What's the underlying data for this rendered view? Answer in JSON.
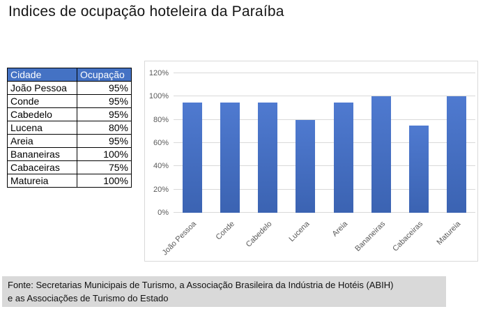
{
  "title": "Indices de ocupação hoteleira da Paraíba",
  "table": {
    "headers": [
      "Cidade",
      "Ocupação"
    ],
    "rows": [
      [
        "João Pessoa",
        "95%"
      ],
      [
        "Conde",
        "95%"
      ],
      [
        "Cabedelo",
        "95%"
      ],
      [
        "Lucena",
        "80%"
      ],
      [
        "Areia",
        "95%"
      ],
      [
        "Bananeiras",
        "100%"
      ],
      [
        "Cabaceiras",
        "75%"
      ],
      [
        "Matureia",
        "100%"
      ]
    ]
  },
  "chart_data": {
    "type": "bar",
    "categories": [
      "João Pessoa",
      "Conde",
      "Cabedelo",
      "Lucena",
      "Areia",
      "Bananeiras",
      "Cabaceiras",
      "Matureia"
    ],
    "values": [
      95,
      95,
      95,
      80,
      95,
      100,
      75,
      100
    ],
    "value_suffix": "%",
    "title": "",
    "xlabel": "",
    "ylabel": "",
    "ylim": [
      0,
      120
    ],
    "ytick_step": 20,
    "ytick_labels": [
      "0%",
      "20%",
      "40%",
      "60%",
      "80%",
      "100%",
      "120%"
    ],
    "grid": true,
    "legend": false
  },
  "footer": {
    "line1": "Fonte: Secretarias Municipais de Turismo, a Associação Brasileira da Indústria de Hotéis (ABIH)",
    "line2": "e as Associações de Turismo do Estado"
  },
  "colors": {
    "table_header_bg": "#4472c4",
    "table_header_text": "#ffffff",
    "table_border": "#000000",
    "bar_top": "#4f7ad0",
    "bar_bottom": "#3b63b2",
    "gridline": "#d9d9d9",
    "axis_label": "#595959",
    "chart_border": "#d9d9d9",
    "footer_bg": "#d9d9d9"
  }
}
